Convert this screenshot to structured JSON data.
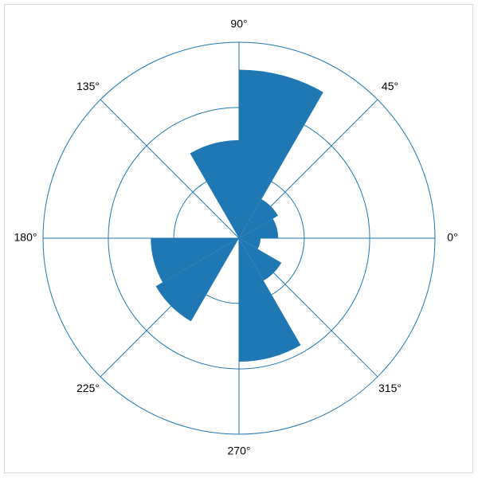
{
  "chart_data": {
    "type": "polar-bar",
    "title": "",
    "angular_tick_labels": [
      "0°",
      "45°",
      "90°",
      "135°",
      "180°",
      "225°",
      "270°",
      "315°"
    ],
    "angular_ticks_deg": [
      0,
      45,
      90,
      135,
      180,
      225,
      270,
      315
    ],
    "radial_grid": [
      0.333,
      0.667,
      1.0
    ],
    "radial_max": 1.0,
    "grid": true,
    "colors": {
      "bar": "#1f77b4",
      "grid": "#1f77b4",
      "frame": "#d9d9d9"
    },
    "bins": [
      {
        "start_deg": 0,
        "end_deg": 30,
        "value": 0.2
      },
      {
        "start_deg": 30,
        "end_deg": 60,
        "value": 0.23
      },
      {
        "start_deg": 60,
        "end_deg": 90,
        "value": 0.86
      },
      {
        "start_deg": 90,
        "end_deg": 120,
        "value": 0.5
      },
      {
        "start_deg": 120,
        "end_deg": 150,
        "value": 0.0
      },
      {
        "start_deg": 150,
        "end_deg": 180,
        "value": 0.0
      },
      {
        "start_deg": 180,
        "end_deg": 210,
        "value": 0.45
      },
      {
        "start_deg": 210,
        "end_deg": 240,
        "value": 0.49
      },
      {
        "start_deg": 240,
        "end_deg": 270,
        "value": 0.0
      },
      {
        "start_deg": 270,
        "end_deg": 300,
        "value": 0.63
      },
      {
        "start_deg": 300,
        "end_deg": 330,
        "value": 0.25
      },
      {
        "start_deg": 330,
        "end_deg": 360,
        "value": 0.11
      }
    ]
  }
}
